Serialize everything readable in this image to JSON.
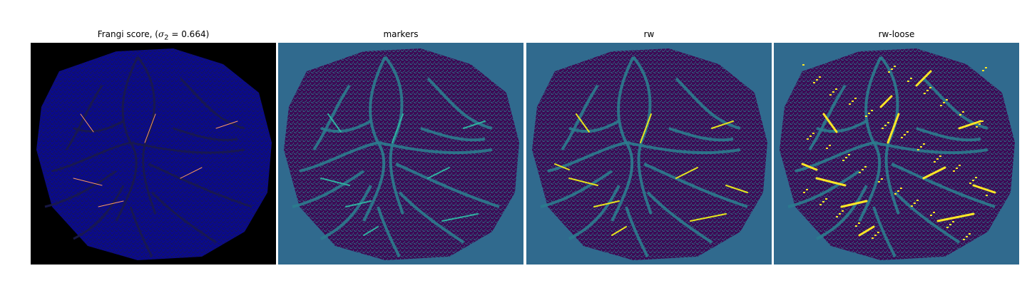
{
  "figure": {
    "panels": [
      {
        "id": "frangi",
        "title_prefix": "Frangi score, (",
        "title_sigma": "σ",
        "title_sub": "2",
        "title_suffix": " = 0.664)",
        "background": "#000000",
        "blob": "#0a0a8a",
        "vessel": "#1a1a4a",
        "highlight": "#ff9a60"
      },
      {
        "id": "markers",
        "title": "markers",
        "background": "#306a8e",
        "blob": "#3d0a55",
        "vessel": "#2b7c8e",
        "highlight": "#2fb0a0"
      },
      {
        "id": "rw",
        "title": "rw",
        "background": "#306a8e",
        "blob": "#3d0a55",
        "vessel": "#2b7c8e",
        "highlight": "#e6e41c"
      },
      {
        "id": "rw-loose",
        "title": "rw-loose",
        "background": "#306a8e",
        "blob": "#3d0a55",
        "vessel": "#2b7c8e",
        "highlight": "#fde725"
      }
    ]
  }
}
